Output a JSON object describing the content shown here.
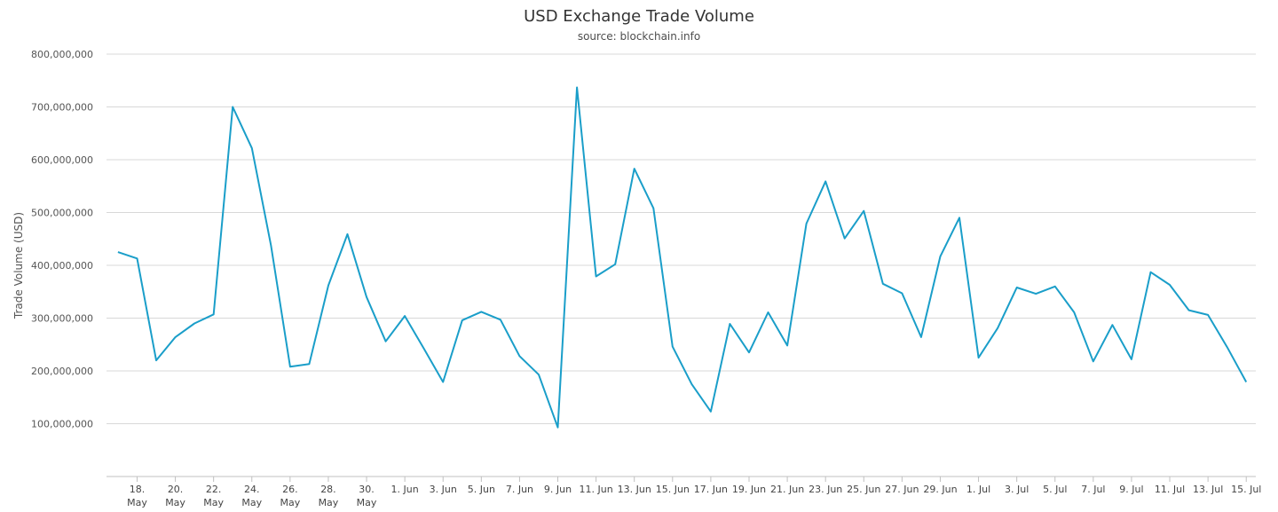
{
  "chart_data": {
    "type": "line",
    "title": "USD Exchange Trade Volume",
    "subtitle": "source: blockchain.info",
    "ylabel": "Trade Volume (USD)",
    "xlabel": "",
    "ylim": [
      0,
      800000000
    ],
    "yticks": [
      {
        "value": 100000000,
        "label": "100,000,000"
      },
      {
        "value": 200000000,
        "label": "200,000,000"
      },
      {
        "value": 300000000,
        "label": "300,000,000"
      },
      {
        "value": 400000000,
        "label": "400,000,000"
      },
      {
        "value": 500000000,
        "label": "500,000,000"
      },
      {
        "value": 600000000,
        "label": "600,000,000"
      },
      {
        "value": 700000000,
        "label": "700,000,000"
      },
      {
        "value": 800000000,
        "label": "800,000,000"
      }
    ],
    "xticks": [
      {
        "index": 1,
        "label": [
          "18.",
          "May"
        ]
      },
      {
        "index": 3,
        "label": [
          "20.",
          "May"
        ]
      },
      {
        "index": 5,
        "label": [
          "22.",
          "May"
        ]
      },
      {
        "index": 7,
        "label": [
          "24.",
          "May"
        ]
      },
      {
        "index": 9,
        "label": [
          "26.",
          "May"
        ]
      },
      {
        "index": 11,
        "label": [
          "28.",
          "May"
        ]
      },
      {
        "index": 13,
        "label": [
          "30.",
          "May"
        ]
      },
      {
        "index": 15,
        "label": [
          "1. Jun"
        ]
      },
      {
        "index": 17,
        "label": [
          "3. Jun"
        ]
      },
      {
        "index": 19,
        "label": [
          "5. Jun"
        ]
      },
      {
        "index": 21,
        "label": [
          "7. Jun"
        ]
      },
      {
        "index": 23,
        "label": [
          "9. Jun"
        ]
      },
      {
        "index": 25,
        "label": [
          "11. Jun"
        ]
      },
      {
        "index": 27,
        "label": [
          "13. Jun"
        ]
      },
      {
        "index": 29,
        "label": [
          "15. Jun"
        ]
      },
      {
        "index": 31,
        "label": [
          "17. Jun"
        ]
      },
      {
        "index": 33,
        "label": [
          "19. Jun"
        ]
      },
      {
        "index": 35,
        "label": [
          "21. Jun"
        ]
      },
      {
        "index": 37,
        "label": [
          "23. Jun"
        ]
      },
      {
        "index": 39,
        "label": [
          "25. Jun"
        ]
      },
      {
        "index": 41,
        "label": [
          "27. Jun"
        ]
      },
      {
        "index": 43,
        "label": [
          "29. Jun"
        ]
      },
      {
        "index": 45,
        "label": [
          "1. Jul"
        ]
      },
      {
        "index": 47,
        "label": [
          "3. Jul"
        ]
      },
      {
        "index": 49,
        "label": [
          "5. Jul"
        ]
      },
      {
        "index": 51,
        "label": [
          "7. Jul"
        ]
      },
      {
        "index": 53,
        "label": [
          "9. Jul"
        ]
      },
      {
        "index": 55,
        "label": [
          "11. Jul"
        ]
      },
      {
        "index": 57,
        "label": [
          "13. Jul"
        ]
      },
      {
        "index": 59,
        "label": [
          "15. Jul"
        ]
      }
    ],
    "x_range": [
      -0.6,
      59.5
    ],
    "series": [
      {
        "color": "#1a9ec9",
        "values": [
          425000000,
          413000000,
          220000000,
          264000000,
          290000000,
          307000000,
          700000000,
          622000000,
          438000000,
          208000000,
          213000000,
          362000000,
          459000000,
          340000000,
          256000000,
          304000000,
          242000000,
          179000000,
          296000000,
          312000000,
          297000000,
          228000000,
          193000000,
          93000000,
          737000000,
          379000000,
          402000000,
          583000000,
          508000000,
          246000000,
          175000000,
          123000000,
          289000000,
          235000000,
          311000000,
          248000000,
          479000000,
          559000000,
          451000000,
          503000000,
          365000000,
          347000000,
          264000000,
          417000000,
          490000000,
          225000000,
          281000000,
          358000000,
          346000000,
          360000000,
          311000000,
          218000000,
          287000000,
          222000000,
          387000000,
          363000000,
          315000000,
          306000000,
          245000000,
          179000000
        ]
      }
    ],
    "grid": true,
    "legend": "none"
  }
}
